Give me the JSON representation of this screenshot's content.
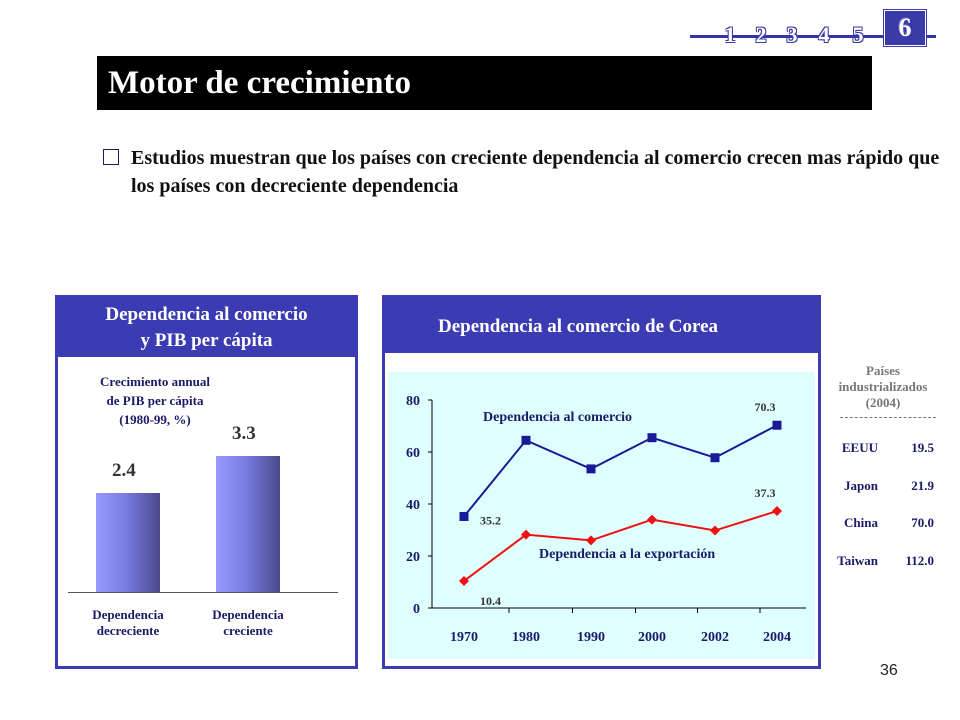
{
  "nav": {
    "items": [
      "1",
      "2",
      "3",
      "4",
      "5"
    ],
    "active": "6"
  },
  "title": "Motor de crecimiento",
  "bullet": "Estudios muestran que los países con creciente dependencia al comercio crecen mas rápido que los países con decreciente dependencia",
  "left_panel": {
    "title_line1": "Dependencia al comercio",
    "title_line2": "y PIB per cápita",
    "subtitle_line1": "Crecimiento annual",
    "subtitle_line2": "de PIB per cápita",
    "subtitle_line3": "(1980-99, %)",
    "bars": [
      {
        "value_label": "2.4",
        "label_line1": "Dependencia",
        "label_line2": "decreciente"
      },
      {
        "value_label": "3.3",
        "label_line1": "Dependencia",
        "label_line2": "creciente"
      }
    ]
  },
  "right_panel": {
    "title": "Dependencia al comercio de Corea"
  },
  "chart_data": [
    {
      "type": "bar",
      "categories": [
        "Dependencia decreciente",
        "Dependencia creciente"
      ],
      "values": [
        2.4,
        3.3
      ],
      "title": "Crecimiento annual de PIB per cápita (1980-99, %)",
      "ylim": [
        0,
        4.5
      ]
    },
    {
      "type": "line",
      "title": "Dependencia al comercio de Corea",
      "categories": [
        "1970",
        "1980",
        "1990",
        "2000",
        "2002",
        "2004"
      ],
      "yticks": [
        "0",
        "20",
        "40",
        "60",
        "80"
      ],
      "ylim": [
        0,
        80
      ],
      "series": [
        {
          "name": "Dependencia al comercio",
          "values": [
            35.2,
            64.5,
            53.5,
            65.5,
            57.8,
            70.3
          ],
          "color": "#1a1a99",
          "marker": "square",
          "labels": {
            "first": "35.2",
            "last": "70.3"
          }
        },
        {
          "name": "Dependencia a la exportación",
          "values": [
            10.4,
            28.2,
            26.0,
            34.0,
            29.8,
            37.3
          ],
          "color": "#ee1111",
          "marker": "diamond",
          "labels": {
            "first": "10.4",
            "last": "37.3"
          }
        }
      ]
    }
  ],
  "table": {
    "title_line1": "Países",
    "title_line2": "industrializados",
    "title_line3": "(2004)",
    "rows": [
      {
        "name": "EEUU",
        "value": "19.5"
      },
      {
        "name": "Japon",
        "value": "21.9"
      },
      {
        "name": "China",
        "value": "70.0"
      },
      {
        "name": "Taiwan",
        "value": "112.0"
      }
    ]
  },
  "page_number": "36",
  "colors": {
    "accent": "#3b3bb3",
    "title_bg": "#000000",
    "plot_bg": "#dfffff",
    "series1": "#1a1a99",
    "series2": "#ee1111"
  }
}
